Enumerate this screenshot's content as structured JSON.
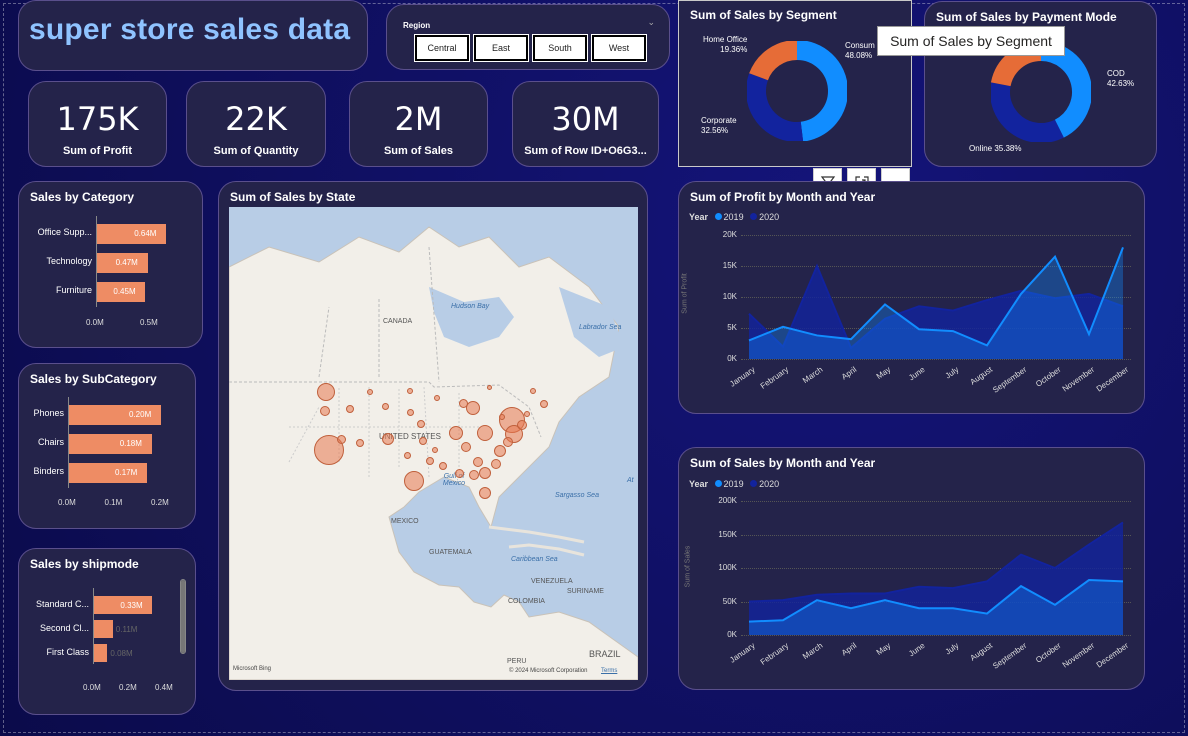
{
  "title": "super store sales data",
  "region_slicer": {
    "label": "Region",
    "options": [
      "Central",
      "East",
      "South",
      "West"
    ]
  },
  "kpis": [
    {
      "value": "175K",
      "label": "Sum of Profit"
    },
    {
      "value": "22K",
      "label": "Sum of Quantity"
    },
    {
      "value": "2M",
      "label": "Sum of Sales"
    },
    {
      "value": "30M",
      "label": "Sum of Row ID+O6G3..."
    }
  ],
  "segment_chart": {
    "title": "Sum of Sales by Segment",
    "slices": [
      {
        "name": "Consum",
        "pct": 48.08,
        "label": "48.08%",
        "color": "#118dff"
      },
      {
        "name": "Corporate",
        "pct": 32.56,
        "label": "32.56%",
        "color": "#12239e"
      },
      {
        "name": "Home Office",
        "pct": 19.36,
        "label": "19.36%",
        "color": "#e66c37"
      }
    ]
  },
  "payment_chart": {
    "title": "Sum of Sales by Payment Mode",
    "slices": [
      {
        "name": "COD",
        "pct": 42.63,
        "label": "42.63%",
        "color": "#118dff"
      },
      {
        "name": "Online",
        "pct": 35.38,
        "label": "35.38%",
        "color": "#12239e"
      },
      {
        "name": "",
        "pct": 21.99,
        "label": "",
        "color": "#e66c37"
      }
    ]
  },
  "tooltip": "Sum of Sales by Segment",
  "category_chart": {
    "title": "Sales by Category",
    "rows": [
      {
        "name": "Office Supp...",
        "value": 0.64,
        "label": "0.64M"
      },
      {
        "name": "Technology",
        "value": 0.47,
        "label": "0.47M"
      },
      {
        "name": "Furniture",
        "value": 0.45,
        "label": "0.45M"
      }
    ],
    "ticks": [
      "0.0M",
      "0.5M"
    ],
    "max": 0.82
  },
  "subcategory_chart": {
    "title": "Sales by SubCategory",
    "rows": [
      {
        "name": "Phones",
        "value": 0.2,
        "label": "0.20M"
      },
      {
        "name": "Chairs",
        "value": 0.18,
        "label": "0.18M"
      },
      {
        "name": "Binders",
        "value": 0.17,
        "label": "0.17M"
      }
    ],
    "ticks": [
      "0.0M",
      "0.1M",
      "0.2M"
    ],
    "max": 0.2
  },
  "shipmode_chart": {
    "title": "Sales by shipmode",
    "rows": [
      {
        "name": "Standard C...",
        "value": 0.33,
        "label": "0.33M"
      },
      {
        "name": "Second Cl...",
        "value": 0.11,
        "label": "0.11M"
      },
      {
        "name": "First Class",
        "value": 0.08,
        "label": "0.08M"
      }
    ],
    "ticks": [
      "0.0M",
      "0.2M",
      "0.4M"
    ],
    "max": 0.4
  },
  "map": {
    "title": "Sum of Sales by State",
    "labels": {
      "canada": "CANADA",
      "usa": "UNITED STATES",
      "mexico": "MEXICO",
      "guatemala": "GUATEMALA",
      "venezuela": "VENEZUELA",
      "colombia": "COLOMBIA",
      "suriname": "SURINAME",
      "peru": "PERU",
      "brazil": "BRAZIL",
      "hudson": "Hudson Bay",
      "labrador": "Labrador Sea",
      "gulf": "Gulf of Mexico",
      "sargasso": "Sargasso Sea",
      "caribbean": "Caribbean Sea",
      "atl": "At"
    },
    "copyright": "© 2024 Microsoft Corporation",
    "terms": "Terms",
    "bing": "Microsoft Bing"
  },
  "profit_chart": {
    "title": "Sum of Profit by Month and Year",
    "legend_title": "Year",
    "series_names": [
      "2019",
      "2020"
    ],
    "series_colors": [
      "#118dff",
      "#12239e"
    ],
    "y_ticks": [
      "20K",
      "15K",
      "10K",
      "5K",
      "0K"
    ],
    "y_title": "Sum of Profit",
    "ymax": 20000
  },
  "sales_chart": {
    "title": "Sum of Sales by Month and Year",
    "legend_title": "Year",
    "series_names": [
      "2019",
      "2020"
    ],
    "series_colors": [
      "#118dff",
      "#12239e"
    ],
    "y_ticks": [
      "200K",
      "150K",
      "100K",
      "50K",
      "0K"
    ],
    "y_title": "Sum of Sales",
    "ymax": 200000
  },
  "chart_data": [
    {
      "type": "line",
      "title": "Sum of Profit by Month and Year",
      "categories": [
        "January",
        "February",
        "March",
        "April",
        "May",
        "June",
        "July",
        "August",
        "September",
        "October",
        "November",
        "December"
      ],
      "series": [
        {
          "name": "2019",
          "values": [
            3000,
            5200,
            3800,
            3200,
            8800,
            4800,
            4500,
            2200,
            10500,
            16500,
            4000,
            18000
          ]
        },
        {
          "name": "2020",
          "values": [
            7300,
            2000,
            15000,
            1800,
            6500,
            8500,
            7800,
            9500,
            11000,
            9800,
            10500,
            8500
          ]
        }
      ],
      "ylim": [
        0,
        20000
      ]
    },
    {
      "type": "line",
      "title": "Sum of Sales by Month and Year",
      "categories": [
        "January",
        "February",
        "March",
        "April",
        "May",
        "June",
        "July",
        "August",
        "September",
        "October",
        "November",
        "December"
      ],
      "series": [
        {
          "name": "2019",
          "values": [
            20000,
            22000,
            52000,
            40000,
            52000,
            40000,
            40000,
            32000,
            73000,
            45000,
            82000,
            80000
          ]
        },
        {
          "name": "2020",
          "values": [
            50000,
            52000,
            60000,
            62000,
            62000,
            72000,
            70000,
            80000,
            120000,
            100000,
            135000,
            168000
          ]
        }
      ],
      "ylim": [
        0,
        200000
      ]
    }
  ]
}
